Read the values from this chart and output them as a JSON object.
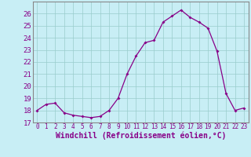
{
  "x": [
    0,
    1,
    2,
    3,
    4,
    5,
    6,
    7,
    8,
    9,
    10,
    11,
    12,
    13,
    14,
    15,
    16,
    17,
    18,
    19,
    20,
    21,
    22,
    23
  ],
  "y": [
    18.0,
    18.5,
    18.6,
    17.8,
    17.6,
    17.5,
    17.4,
    17.5,
    18.0,
    19.0,
    21.0,
    22.5,
    23.6,
    23.8,
    25.3,
    25.8,
    26.3,
    25.7,
    25.3,
    24.8,
    22.9,
    19.4,
    18.0,
    18.2
  ],
  "xlabel": "Windchill (Refroidissement éolien,°C)",
  "ylim": [
    17,
    27
  ],
  "xlim_min": -0.5,
  "xlim_max": 23.5,
  "yticks": [
    17,
    18,
    19,
    20,
    21,
    22,
    23,
    24,
    25,
    26
  ],
  "xticks": [
    0,
    1,
    2,
    3,
    4,
    5,
    6,
    7,
    8,
    9,
    10,
    11,
    12,
    13,
    14,
    15,
    16,
    17,
    18,
    19,
    20,
    21,
    22,
    23
  ],
  "line_color": "#880088",
  "marker_color": "#880088",
  "bg_color": "#C8EEF5",
  "grid_color": "#99CCCC",
  "border_color": "#888888",
  "xlabel_color": "#880088",
  "tick_color": "#880088",
  "font_family": "monospace",
  "xlabel_fontsize": 7,
  "xtick_fontsize": 5.5,
  "ytick_fontsize": 6.5
}
